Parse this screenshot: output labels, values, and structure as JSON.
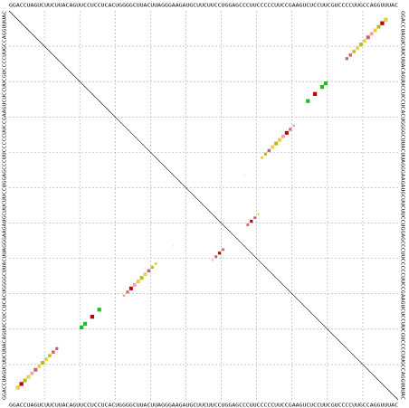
{
  "chart_data": {
    "type": "dotplot",
    "sequence": "GGACCUAGUCUUCUUACAGUUCCUCCUCACUGGGGCUUACUUAGGGAAGAUGCUUCUUCCUGGAGCCCUUCCCCCUUCCGAAGUCUCCUUCGUCCCCUUGCCAGGUUUAC",
    "grid": true,
    "pairs": [
      [
        2,
        106,
        0.9,
        "#e8d040"
      ],
      [
        3,
        105,
        0.9,
        "#c00000"
      ],
      [
        4,
        104,
        0.8,
        "#b8b820"
      ],
      [
        5,
        103,
        0.8,
        "#e8d040"
      ],
      [
        6,
        102,
        0.7,
        "#f0a0a0"
      ],
      [
        7,
        101,
        0.8,
        "#c06080"
      ],
      [
        8,
        100,
        0.7,
        "#e8d040"
      ],
      [
        9,
        99,
        0.8,
        "#b8b820"
      ],
      [
        10,
        98,
        0.7,
        "#e8d040"
      ],
      [
        11,
        97,
        0.6,
        "#b8b820"
      ],
      [
        12,
        96,
        0.6,
        "#e06060"
      ],
      [
        13,
        95,
        0.5,
        "#c06080"
      ],
      [
        20,
        89,
        0.9,
        "#20c020"
      ],
      [
        21,
        88,
        0.9,
        "#20c020"
      ],
      [
        23,
        86,
        0.9,
        "#c00000"
      ],
      [
        25,
        84,
        0.9,
        "#20c020"
      ],
      [
        32,
        80,
        0.3,
        "#f0a0a0"
      ],
      [
        33,
        79,
        0.5,
        "#e06060"
      ],
      [
        34,
        78,
        0.8,
        "#c00000"
      ],
      [
        35,
        77,
        0.7,
        "#f0a0a0"
      ],
      [
        36,
        76,
        0.8,
        "#e8d040"
      ],
      [
        37,
        75,
        0.8,
        "#b8b820"
      ],
      [
        38,
        74,
        0.7,
        "#e8d040"
      ],
      [
        39,
        73,
        0.6,
        "#c06080"
      ],
      [
        40,
        72,
        0.5,
        "#b8b820"
      ],
      [
        41,
        71,
        0.4,
        "#e8d040"
      ],
      [
        57,
        70,
        0.2,
        "#e8d040"
      ],
      [
        58,
        69,
        0.4,
        "#c06080"
      ],
      [
        59,
        68,
        0.5,
        "#c00000"
      ],
      [
        60,
        67,
        0.4,
        "#e06060"
      ],
      [
        46,
        66,
        0.05,
        "#f0a0a0"
      ]
    ]
  }
}
